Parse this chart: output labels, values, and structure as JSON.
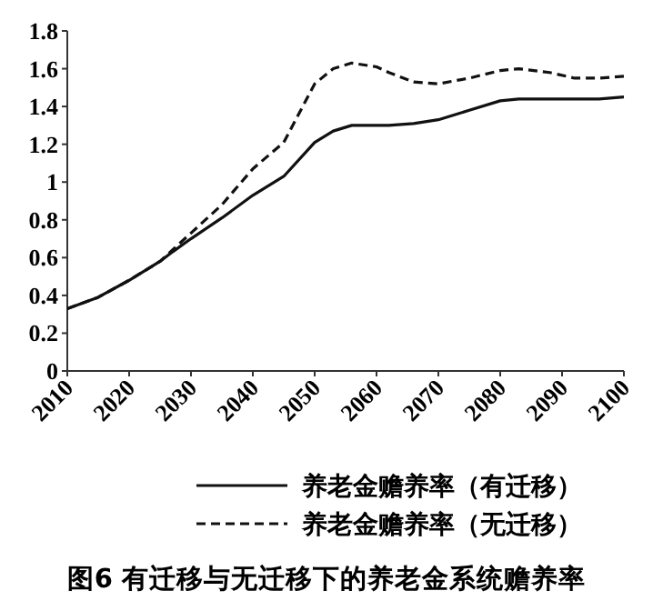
{
  "chart_data": {
    "type": "line",
    "title": "图6  有迁移与无迁移下的养老金系统赡养率",
    "x": [
      2010,
      2015,
      2020,
      2025,
      2027,
      2030,
      2035,
      2040,
      2045,
      2050,
      2053,
      2056,
      2060,
      2062,
      2066,
      2070,
      2075,
      2080,
      2083,
      2088,
      2092,
      2096,
      2100
    ],
    "series": [
      {
        "name": "养老金赡养率（有迁移）",
        "color": "#111111",
        "line_style": "solid",
        "values": [
          0.33,
          0.39,
          0.48,
          0.58,
          0.63,
          0.7,
          0.81,
          0.93,
          1.03,
          1.21,
          1.27,
          1.3,
          1.3,
          1.3,
          1.31,
          1.33,
          1.38,
          1.43,
          1.44,
          1.44,
          1.44,
          1.44,
          1.45
        ]
      },
      {
        "name": "养老金赡养率（无迁移）",
        "color": "#111111",
        "line_style": "dashed",
        "values": [
          0.33,
          0.39,
          0.48,
          0.58,
          0.64,
          0.73,
          0.88,
          1.07,
          1.21,
          1.52,
          1.6,
          1.63,
          1.61,
          1.58,
          1.53,
          1.52,
          1.55,
          1.59,
          1.6,
          1.58,
          1.55,
          1.55,
          1.56
        ]
      }
    ],
    "xlim": [
      2010,
      2100
    ],
    "xticks": [
      2010,
      2020,
      2030,
      2040,
      2050,
      2060,
      2070,
      2080,
      2090,
      2100
    ],
    "ylim": [
      0,
      1.8
    ],
    "yticks": [
      0,
      0.2,
      0.4,
      0.6,
      0.8,
      1,
      1.2,
      1.4,
      1.6,
      1.8
    ],
    "grid": false,
    "legend": "bottom",
    "marker": "none"
  }
}
